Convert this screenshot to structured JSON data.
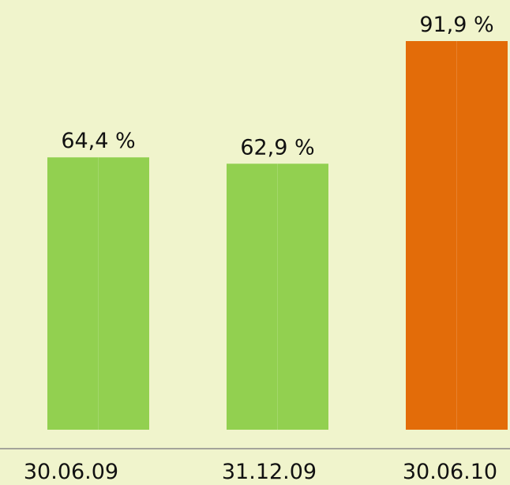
{
  "chart_data": {
    "type": "bar",
    "categories": [
      "30.06.09",
      "31.12.09",
      "30.06.10"
    ],
    "values": [
      64.4,
      62.9,
      91.9
    ],
    "value_labels": [
      "64,4 %",
      "62,9 %",
      "91,9 %"
    ],
    "colors": [
      "#92d050",
      "#92d050",
      "#e36c09"
    ]
  }
}
